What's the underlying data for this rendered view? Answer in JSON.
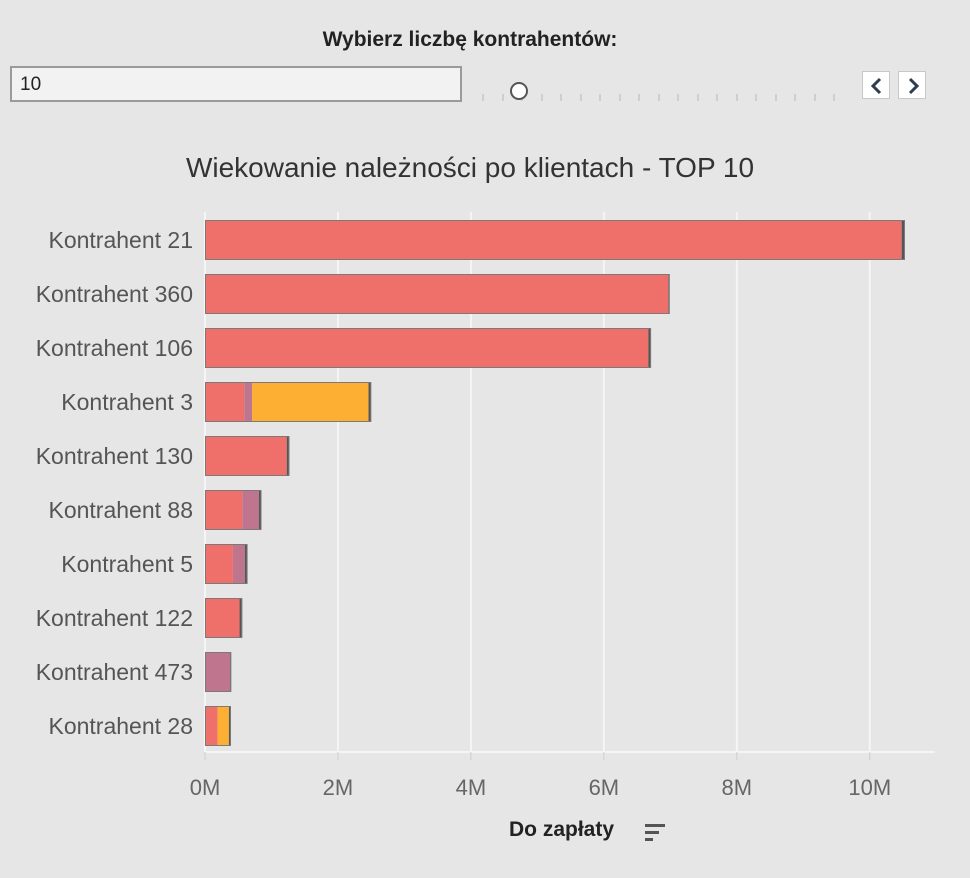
{
  "parameter": {
    "title": "Wybierz liczbę kontrahentów:",
    "value": "10"
  },
  "nav": {
    "prev_icon": "chevron-left-icon",
    "next_icon": "chevron-right-icon"
  },
  "footer": {
    "measure_label": "Do zapłaty",
    "sort_icon": "sort-descending-icon"
  },
  "chart_data": {
    "type": "bar",
    "orientation": "horizontal",
    "stacked": true,
    "title": "Wiekowanie należności po klientach - TOP 10",
    "categories": [
      "Kontrahent 21",
      "Kontrahent 360",
      "Kontrahent 106",
      "Kontrahent 3",
      "Kontrahent 130",
      "Kontrahent 88",
      "Kontrahent 5",
      "Kontrahent 122",
      "Kontrahent 473",
      "Kontrahent 28"
    ],
    "series": [
      {
        "color": "#ef706b",
        "values": [
          10.48,
          6.97,
          6.67,
          0.59,
          1.23,
          0.56,
          0.42,
          0.52,
          0,
          0.19
        ]
      },
      {
        "color": "#c0758f",
        "values": [
          0,
          0,
          0,
          0.12,
          0,
          0.25,
          0.18,
          0,
          0.38,
          0
        ]
      },
      {
        "color": "#fdaf34",
        "values": [
          0,
          0,
          0,
          1.75,
          0,
          0,
          0,
          0,
          0,
          0.17
        ]
      },
      {
        "color": "#555555",
        "values": [
          0.05,
          0.02,
          0.04,
          0.04,
          0.04,
          0.04,
          0.04,
          0.04,
          0.01,
          0.03
        ]
      }
    ],
    "xlim": [
      0,
      10.5
    ],
    "xticks": [
      0,
      2,
      4,
      6,
      8,
      10
    ],
    "xtick_labels": [
      "0M",
      "2M",
      "4M",
      "6M",
      "8M",
      "10M"
    ],
    "xlabel": "Do zapłaty",
    "grid": true
  }
}
